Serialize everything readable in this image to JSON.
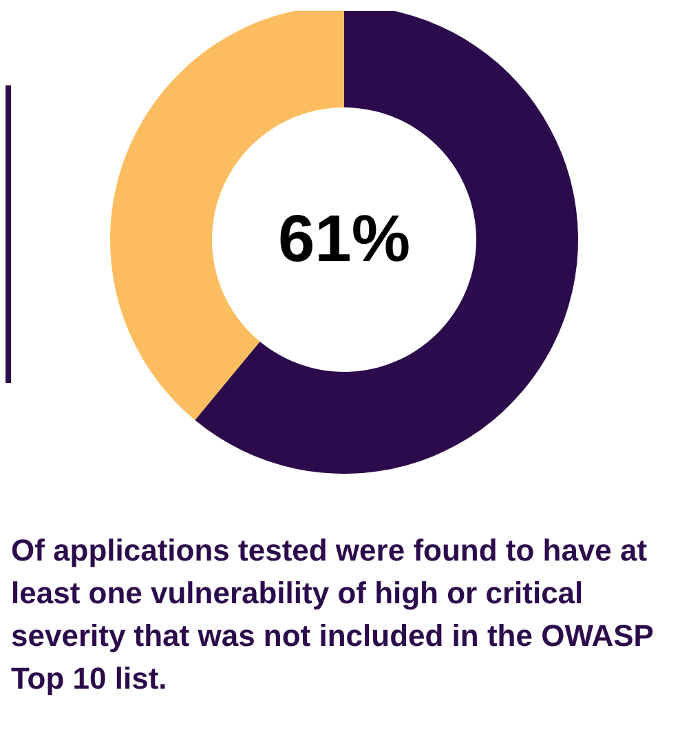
{
  "chart_data": {
    "type": "donut",
    "categories": [
      null,
      null
    ],
    "values": [
      61,
      39
    ],
    "colors": [
      "#2b0b4b",
      "#fbbd5f"
    ],
    "value_labels": [
      "61%",
      null
    ],
    "annotations": [
      "Of applications tested were found to have at least one vulnerability of high or critical severity that was not included in the OWASP Top 10 list."
    ]
  }
}
